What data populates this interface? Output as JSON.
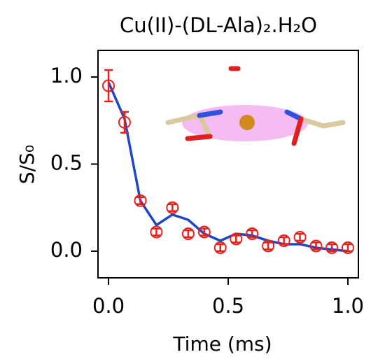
{
  "chart_data": {
    "type": "scatter",
    "title": "Cu(II)-(DL-Ala)₂.H₂O",
    "x_label": "Time (ms)",
    "y_label": "S/S₀",
    "x": [
      0,
      0.067,
      0.133,
      0.2,
      0.267,
      0.333,
      0.4,
      0.467,
      0.533,
      0.6,
      0.667,
      0.733,
      0.8,
      0.867,
      0.933,
      1
    ],
    "points": {
      "color": "#e8201a",
      "values": [
        0.95,
        0.74,
        0.29,
        0.11,
        0.25,
        0.1,
        0.11,
        0.02,
        0.07,
        0.1,
        0.03,
        0.06,
        0.08,
        0.03,
        0.02,
        0.02
      ],
      "errors": [
        0.09,
        0.06,
        0.02,
        0.02,
        0.02,
        0.02,
        0.02,
        0.02,
        0.02,
        0.02,
        0.02,
        0.02,
        0.02,
        0.02,
        0.02,
        0.02
      ]
    },
    "fit": {
      "color": "#1f45c8",
      "values": [
        0.97,
        0.76,
        0.29,
        0.15,
        0.21,
        0.18,
        0.1,
        0.06,
        0.1,
        0.09,
        0.06,
        0.04,
        0.04,
        0.02,
        0.01,
        0
      ]
    },
    "xlim": [
      -0.044,
      1.044
    ],
    "ylim": [
      -0.153,
      1.153
    ],
    "xticks": [
      {
        "value": 0,
        "label": "0.0"
      },
      {
        "value": 0.5,
        "label": "0.5"
      },
      {
        "value": 1,
        "label": "1.0"
      }
    ],
    "yticks": [
      {
        "value": 0,
        "label": "0.0"
      },
      {
        "value": 0.5,
        "label": "0.5"
      },
      {
        "value": 1,
        "label": "1.0"
      }
    ]
  }
}
